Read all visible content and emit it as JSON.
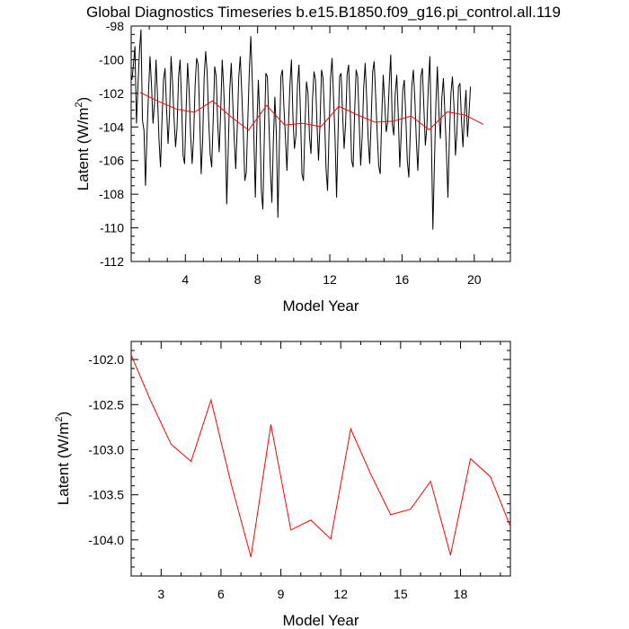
{
  "title": "Global Diagnostics Timeseries b.e15.B1850.f09_g16.pi_control.all.119",
  "colors": {
    "monthly": "#000000",
    "annual": "#ff0000",
    "axis": "#000000",
    "background": "#ffffff"
  },
  "chart_data": [
    {
      "type": "line",
      "xlabel": "Model Year",
      "ylabel": "Latent (W/m",
      "ylabel_sup": "2",
      "ylabel_tail": ")",
      "xlim": [
        1,
        22
      ],
      "ylim": [
        -112,
        -98
      ],
      "xticks": [
        "4",
        "8",
        "12",
        "16",
        "20"
      ],
      "xtick_values": [
        4,
        8,
        12,
        16,
        20
      ],
      "xminor_values": [
        1,
        2,
        3,
        5,
        6,
        7,
        9,
        10,
        11,
        13,
        14,
        15,
        17,
        18,
        19,
        21,
        22
      ],
      "yticks": [
        "-98",
        "-100",
        "-102",
        "-104",
        "-106",
        "-108",
        "-110",
        "-112"
      ],
      "ytick_values": [
        -98,
        -100,
        -102,
        -104,
        -106,
        -108,
        -110,
        -112
      ],
      "yminor_values": [
        -99.5,
        -99,
        -98.5,
        -101.5,
        -101,
        -100.5,
        -103.5,
        -103,
        -102.5,
        -105.5,
        -105,
        -104.5,
        -107.5,
        -107,
        -106.5,
        -109.5,
        -109,
        -108.5,
        -111.5,
        -111,
        -110.5
      ],
      "series": [
        {
          "name": "monthly",
          "x_start": 1.0417,
          "x_step": 0.08333,
          "values": [
            -101.2,
            -100.3,
            -99.2,
            -103.8,
            -101.5,
            -99.5,
            -98.2,
            -103.6,
            -104.2,
            -107.5,
            -104.5,
            -102.0,
            -99.8,
            -101.5,
            -103.8,
            -102.6,
            -100.0,
            -102.2,
            -104.8,
            -106.4,
            -103.5,
            -101.2,
            -100.5,
            -102.9,
            -105.0,
            -103.2,
            -99.8,
            -101.4,
            -103.5,
            -105.2,
            -104.0,
            -101.0,
            -100.0,
            -102.6,
            -105.7,
            -106.2,
            -103.0,
            -100.2,
            -101.8,
            -104.5,
            -106.2,
            -104.6,
            -101.5,
            -99.9,
            -100.3,
            -103.3,
            -106.8,
            -104.8,
            -101.0,
            -99.5,
            -100.8,
            -103.6,
            -105.6,
            -106.4,
            -103.6,
            -100.4,
            -101.0,
            -103.8,
            -105.5,
            -103.0,
            -100.0,
            -101.7,
            -104.3,
            -108.6,
            -105.3,
            -101.8,
            -100.2,
            -102.5,
            -104.8,
            -106.5,
            -104.0,
            -101.0,
            -99.8,
            -102.0,
            -104.3,
            -107.2,
            -106.7,
            -103.6,
            -100.7,
            -98.6,
            -101.3,
            -104.4,
            -108.2,
            -104.0,
            -101.2,
            -103.5,
            -107.8,
            -108.9,
            -104.5,
            -100.8,
            -101.0,
            -103.6,
            -106.5,
            -108.5,
            -104.8,
            -102.2,
            -104.5,
            -109.4,
            -105.0,
            -101.0,
            -100.6,
            -102.8,
            -104.6,
            -106.6,
            -104.0,
            -101.5,
            -100.0,
            -103.4,
            -105.3,
            -104.5,
            -101.5,
            -100.3,
            -103.2,
            -106.8,
            -107.2,
            -104.0,
            -101.3,
            -102.0,
            -104.6,
            -105.6,
            -102.4,
            -100.7,
            -101.2,
            -103.9,
            -106.0,
            -103.8,
            -100.6,
            -101.1,
            -103.4,
            -106.5,
            -107.8,
            -104.3,
            -101.1,
            -99.9,
            -102.3,
            -104.7,
            -108.2,
            -104.3,
            -101.0,
            -100.8,
            -103.2,
            -105.3,
            -103.8,
            -100.9,
            -100.3,
            -102.8,
            -106.0,
            -106.4,
            -103.1,
            -100.6,
            -101.0,
            -103.6,
            -106.3,
            -104.6,
            -101.7,
            -100.2,
            -102.3,
            -104.7,
            -106.2,
            -103.6,
            -100.7,
            -100.1,
            -102.2,
            -104.4,
            -106.3,
            -106.8,
            -103.4,
            -100.9,
            -102.6,
            -104.3,
            -103.7,
            -101.4,
            -99.7,
            -103.8,
            -104.5,
            -102.0,
            -100.9,
            -103.3,
            -106.4,
            -104.3,
            -101.8,
            -101.2,
            -103.4,
            -106.0,
            -107.0,
            -104.3,
            -101.6,
            -100.6,
            -102.3,
            -104.8,
            -106.6,
            -104.2,
            -101.0,
            -100.5,
            -102.8,
            -105.1,
            -104.0,
            -101.5,
            -99.8,
            -104.7,
            -110.1,
            -106.3,
            -102.6,
            -100.4,
            -103.2,
            -104.7,
            -102.2,
            -101.1,
            -103.2,
            -105.5,
            -108.2,
            -104.6,
            -102.0,
            -101.0,
            -102.7,
            -105.7,
            -104.3,
            -101.6,
            -101.4,
            -103.6,
            -105.2,
            -103.2,
            -101.8,
            -104.6,
            -103.2,
            -101.6
          ]
        },
        {
          "name": "annual",
          "x": [
            1.5,
            2.5,
            3.5,
            4.5,
            5.5,
            6.5,
            7.5,
            8.5,
            9.5,
            10.5,
            11.5,
            12.5,
            13.5,
            14.5,
            15.5,
            16.5,
            17.5,
            18.5,
            19.5,
            20.5
          ],
          "values": [
            -101.95,
            -102.47,
            -102.94,
            -103.13,
            -102.45,
            -103.37,
            -104.19,
            -102.72,
            -103.89,
            -103.78,
            -103.99,
            -102.77,
            -103.27,
            -103.72,
            -103.66,
            -103.35,
            -104.17,
            -103.1,
            -103.3,
            -103.85
          ]
        }
      ]
    },
    {
      "type": "line",
      "xlabel": "Model Year",
      "ylabel": "Latent (W/m",
      "ylabel_sup": "2",
      "ylabel_tail": ")",
      "xlim": [
        1.5,
        20.5
      ],
      "ylim": [
        -104.4,
        -101.8
      ],
      "xticks": [
        "3",
        "6",
        "9",
        "12",
        "15",
        "18"
      ],
      "xtick_values": [
        3,
        6,
        9,
        12,
        15,
        18
      ],
      "xminor_values": [
        2,
        4,
        5,
        7,
        8,
        10,
        11,
        13,
        14,
        16,
        17,
        19,
        20
      ],
      "yticks": [
        "-102.0",
        "-102.5",
        "-103.0",
        "-103.5",
        "-104.0"
      ],
      "ytick_values": [
        -102.0,
        -102.5,
        -103.0,
        -103.5,
        -104.0
      ],
      "yminor_values": [
        -101.9,
        -102.1,
        -102.2,
        -102.3,
        -102.4,
        -102.6,
        -102.7,
        -102.8,
        -102.9,
        -103.1,
        -103.2,
        -103.3,
        -103.4,
        -103.6,
        -103.7,
        -103.8,
        -103.9,
        -104.1,
        -104.2,
        -104.3
      ],
      "series": [
        {
          "name": "annual",
          "x": [
            1.5,
            2.5,
            3.5,
            4.5,
            5.5,
            6.5,
            7.5,
            8.5,
            9.5,
            10.5,
            11.5,
            12.5,
            13.5,
            14.5,
            15.5,
            16.5,
            17.5,
            18.5,
            19.5,
            20.5
          ],
          "values": [
            -101.95,
            -102.47,
            -102.94,
            -103.13,
            -102.45,
            -103.37,
            -104.19,
            -102.72,
            -103.89,
            -103.78,
            -103.99,
            -102.77,
            -103.27,
            -103.72,
            -103.66,
            -103.35,
            -104.17,
            -103.1,
            -103.3,
            -103.85
          ]
        }
      ]
    }
  ]
}
